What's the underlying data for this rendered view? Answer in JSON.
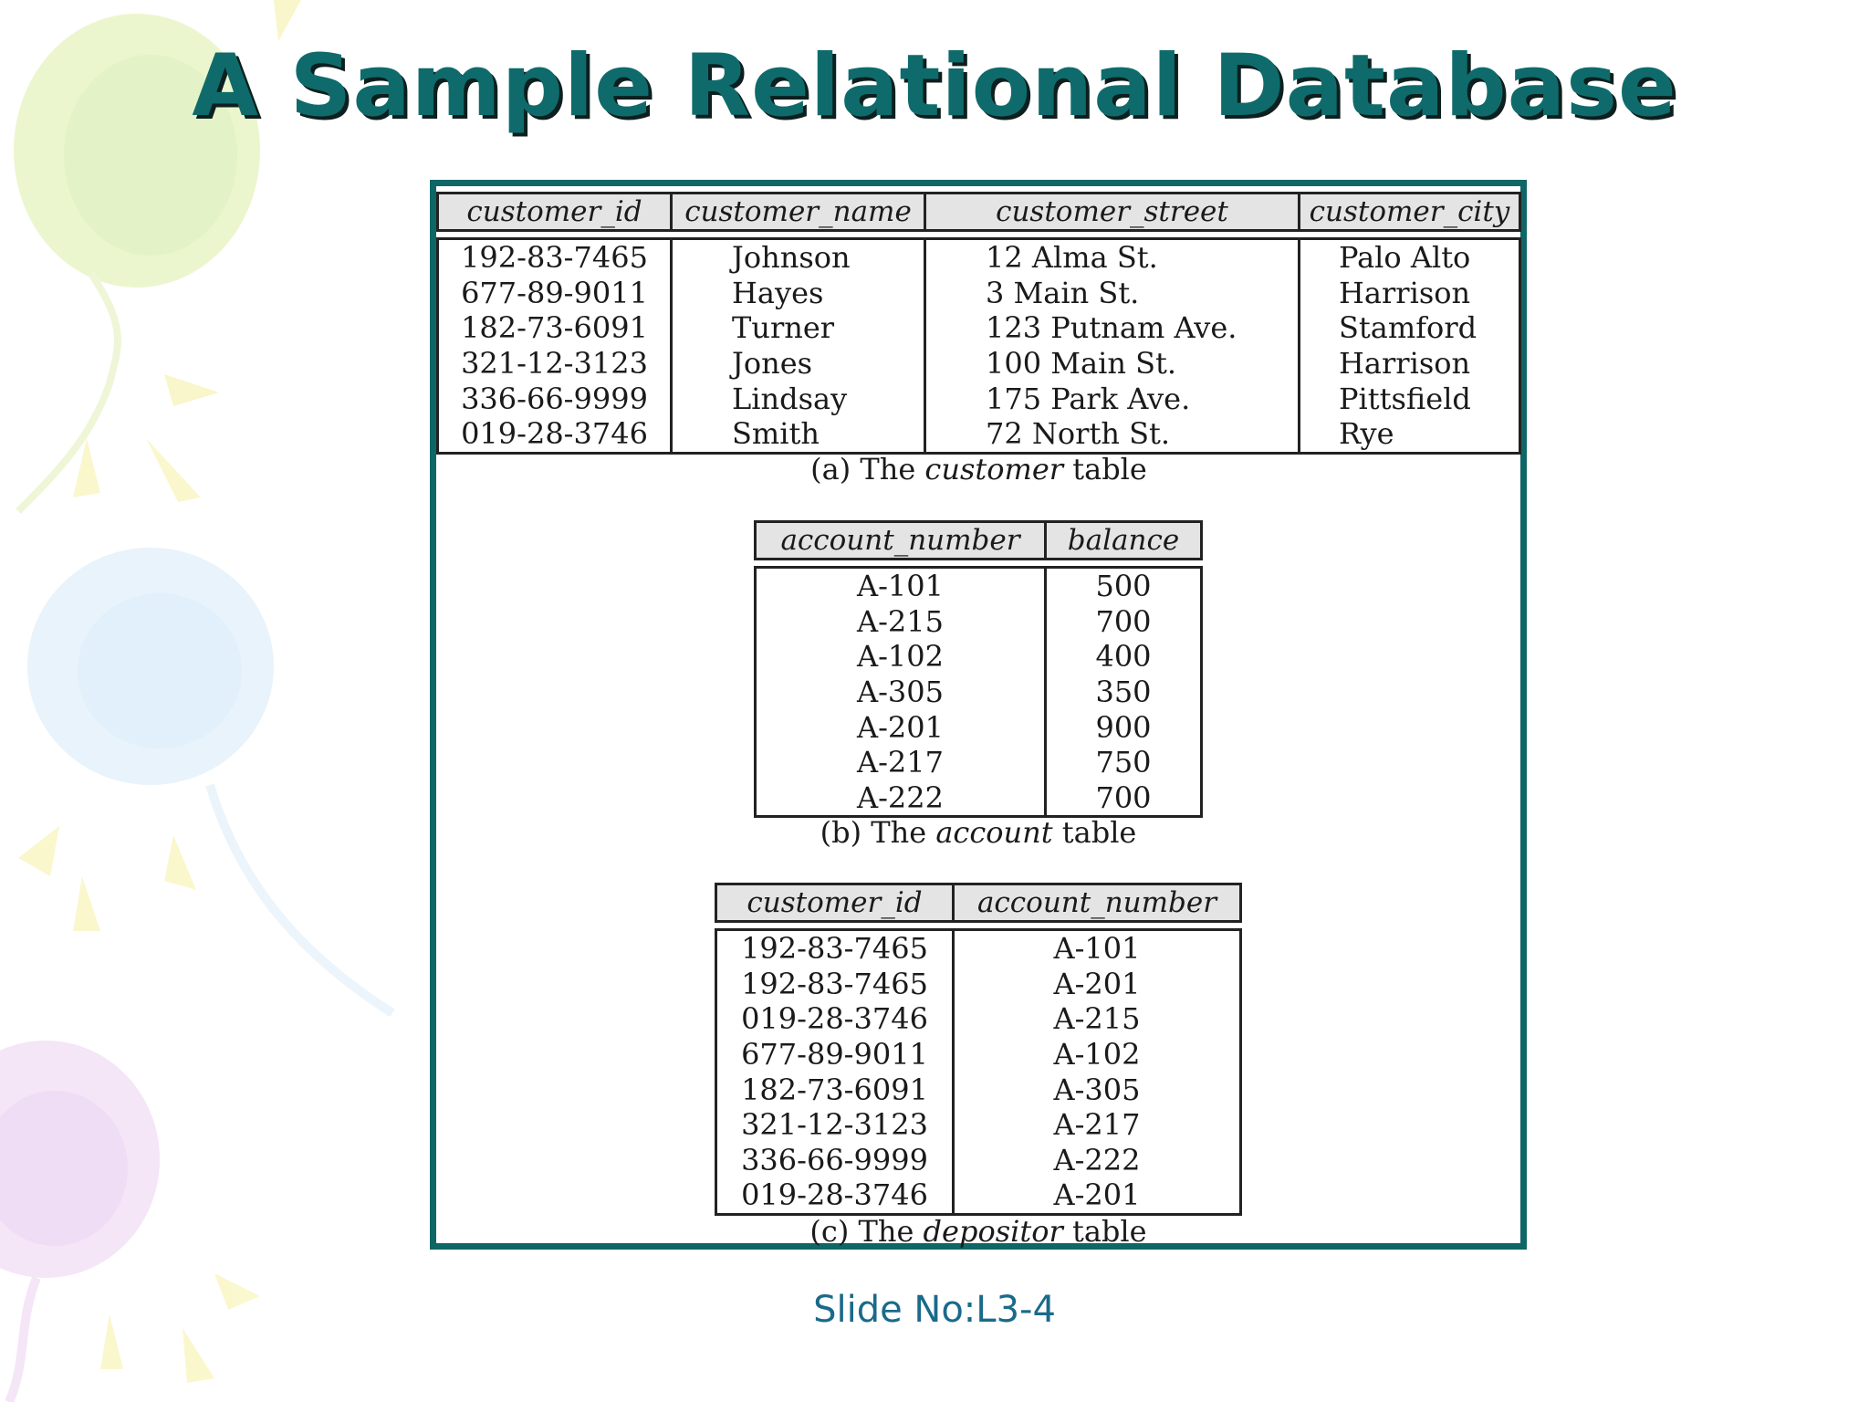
{
  "title": "A Sample Relational Database",
  "slide_no": "Slide No:L3-4",
  "customer_table": {
    "columns": [
      "customer_id",
      "customer_name",
      "customer_street",
      "customer_city"
    ],
    "rows": [
      [
        "192-83-7465",
        "Johnson",
        "12 Alma St.",
        "Palo Alto"
      ],
      [
        "677-89-9011",
        "Hayes",
        "3 Main St.",
        "Harrison"
      ],
      [
        "182-73-6091",
        "Turner",
        "123 Putnam Ave.",
        "Stamford"
      ],
      [
        "321-12-3123",
        "Jones",
        "100 Main St.",
        "Harrison"
      ],
      [
        "336-66-9999",
        "Lindsay",
        "175 Park Ave.",
        "Pittsfield"
      ],
      [
        "019-28-3746",
        "Smith",
        "72 North St.",
        "Rye"
      ]
    ],
    "caption_prefix": "(a) The",
    "caption_name": "customer",
    "caption_suffix": "table"
  },
  "account_table": {
    "columns": [
      "account_number",
      "balance"
    ],
    "rows": [
      [
        "A-101",
        "500"
      ],
      [
        "A-215",
        "700"
      ],
      [
        "A-102",
        "400"
      ],
      [
        "A-305",
        "350"
      ],
      [
        "A-201",
        "900"
      ],
      [
        "A-217",
        "750"
      ],
      [
        "A-222",
        "700"
      ]
    ],
    "caption_prefix": "(b) The",
    "caption_name": "account",
    "caption_suffix": "table"
  },
  "depositor_table": {
    "columns": [
      "customer_id",
      "account_number"
    ],
    "rows": [
      [
        "192-83-7465",
        "A-101"
      ],
      [
        "192-83-7465",
        "A-201"
      ],
      [
        "019-28-3746",
        "A-215"
      ],
      [
        "677-89-9011",
        "A-102"
      ],
      [
        "182-73-6091",
        "A-305"
      ],
      [
        "321-12-3123",
        "A-217"
      ],
      [
        "336-66-9999",
        "A-222"
      ],
      [
        "019-28-3746",
        "A-201"
      ]
    ],
    "caption_prefix": "(c) The",
    "caption_name": "depositor",
    "caption_suffix": "table"
  }
}
